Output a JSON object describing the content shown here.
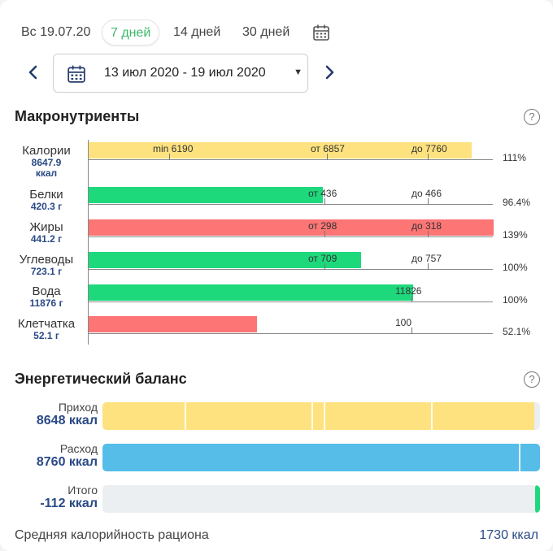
{
  "periods": {
    "day": "Вс 19.07.20",
    "week": "7 дней",
    "two_weeks": "14 дней",
    "month": "30 дней",
    "active": "7 дней"
  },
  "date_range": {
    "label": "13 июл 2020 - 19 июл 2020"
  },
  "icons": [
    "calendar-icon",
    "chevron-left-icon",
    "chevron-right-icon",
    "dropdown-caret-icon",
    "help-icon"
  ],
  "colors": {
    "active_period": "#3db86b",
    "bar_yellow": "#fde27f",
    "bar_green": "#1ed97c",
    "bar_red": "#fd7575",
    "bar_blue": "#56bde9",
    "value_text": "#2a4a86"
  },
  "macros": {
    "title": "Макронутриенты",
    "help": "?",
    "rows": [
      {
        "name": "Калории",
        "value": "8647.9",
        "unit": "ккал",
        "percent": "111%",
        "color": "yellow",
        "fill_ratio": 0.945,
        "marks": [
          {
            "text": "min 6190",
            "pos_ratio": 0.2,
            "tick": true
          },
          {
            "text": "от 6857",
            "pos_ratio": 0.59,
            "tick": true
          },
          {
            "text": "до 7760",
            "pos_ratio": 0.84,
            "tick": true
          }
        ]
      },
      {
        "name": "Белки",
        "value": "420.3 г",
        "unit": "",
        "percent": "96.4%",
        "color": "green",
        "fill_ratio": 0.578,
        "marks": [
          {
            "text": "от 436",
            "pos_ratio": 0.585,
            "tick": true
          },
          {
            "text": "до 466",
            "pos_ratio": 0.84,
            "tick": true
          }
        ]
      },
      {
        "name": "Жиры",
        "value": "441.2 г",
        "unit": "",
        "percent": "139%",
        "color": "red",
        "fill_ratio": 1.0,
        "marks": [
          {
            "text": "от 298",
            "pos_ratio": 0.585,
            "tick": true
          },
          {
            "text": "до 318",
            "pos_ratio": 0.84,
            "tick": true
          }
        ]
      },
      {
        "name": "Углеводы",
        "value": "723.1 г",
        "unit": "",
        "percent": "100%",
        "color": "green",
        "fill_ratio": 0.673,
        "marks": [
          {
            "text": "от 709",
            "pos_ratio": 0.585,
            "tick": true
          },
          {
            "text": "до 757",
            "pos_ratio": 0.84,
            "tick": true
          }
        ]
      },
      {
        "name": "Вода",
        "value": "11876 г",
        "unit": "",
        "percent": "100%",
        "color": "green",
        "fill_ratio": 0.802,
        "marks": [
          {
            "text": "11826",
            "pos_ratio": 0.8,
            "tick": true
          }
        ]
      },
      {
        "name": "Клетчатка",
        "value": "52.1 г",
        "unit": "",
        "percent": "52.1%",
        "color": "red",
        "fill_ratio": 0.416,
        "marks": [
          {
            "text": "100",
            "pos_ratio": 0.8,
            "tick": true
          }
        ]
      }
    ]
  },
  "energy": {
    "title": "Энергетический баланс",
    "help": "?",
    "rows": [
      {
        "label": "Приход",
        "value": "8648 ккал",
        "color": "yellow",
        "fill_ratio": 0.987,
        "separators": [
          0.188,
          0.478,
          0.505,
          0.75
        ]
      },
      {
        "label": "Расход",
        "value": "8760 ккал",
        "color": "blue",
        "fill_ratio": 1.0,
        "separators": [
          0.952
        ]
      },
      {
        "label": "Итого",
        "value": "-112 ккал",
        "color": "green",
        "fill_ratio": 0.0,
        "indicator": true
      }
    ]
  },
  "footer": {
    "label": "Средняя калорийность рациона",
    "value": "1730 ккал"
  }
}
